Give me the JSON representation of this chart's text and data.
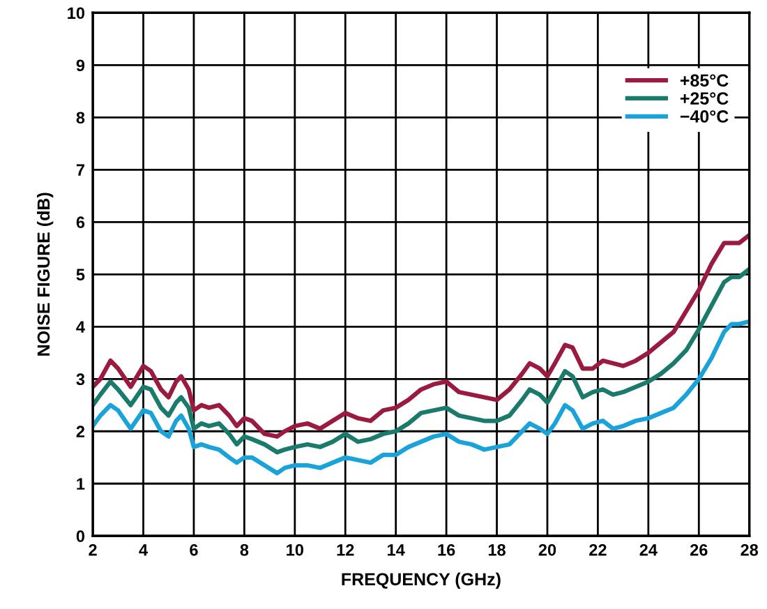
{
  "chart_data": {
    "type": "line",
    "xlabel": "FREQUENCY (GHz)",
    "ylabel": "NOISE FIGURE (dB)",
    "x": [
      2,
      2.3,
      2.7,
      3.0,
      3.5,
      4.0,
      4.3,
      4.7,
      5.0,
      5.3,
      5.5,
      5.8,
      6.0,
      6.3,
      6.6,
      7.0,
      7.4,
      7.7,
      8.0,
      8.3,
      8.8,
      9.3,
      9.6,
      10,
      10.5,
      11,
      11.5,
      12,
      12.5,
      13,
      13.5,
      14,
      14.5,
      15,
      15.5,
      16,
      16.5,
      17,
      17.5,
      18,
      18.5,
      19,
      19.3,
      19.7,
      20,
      20.3,
      20.7,
      21,
      21.4,
      21.8,
      22.2,
      22.6,
      23,
      23.5,
      24,
      24.5,
      25,
      25.5,
      26,
      26.5,
      27,
      27.3,
      27.6,
      28
    ],
    "series": [
      {
        "name": "+85°C",
        "color": "#9b1b40",
        "values": [
          2.85,
          3.0,
          3.35,
          3.2,
          2.85,
          3.25,
          3.15,
          2.8,
          2.65,
          2.95,
          3.05,
          2.8,
          2.4,
          2.5,
          2.45,
          2.5,
          2.3,
          2.1,
          2.25,
          2.2,
          1.95,
          1.9,
          2.0,
          2.1,
          2.15,
          2.05,
          2.2,
          2.35,
          2.25,
          2.2,
          2.4,
          2.45,
          2.6,
          2.8,
          2.9,
          2.95,
          2.75,
          2.7,
          2.65,
          2.6,
          2.8,
          3.1,
          3.3,
          3.2,
          3.05,
          3.3,
          3.65,
          3.6,
          3.2,
          3.2,
          3.35,
          3.3,
          3.25,
          3.35,
          3.5,
          3.7,
          3.9,
          4.3,
          4.7,
          5.2,
          5.6,
          5.6,
          5.6,
          5.75
        ]
      },
      {
        "name": "+25°C",
        "color": "#1a7a6b",
        "values": [
          2.5,
          2.7,
          2.95,
          2.8,
          2.5,
          2.85,
          2.8,
          2.45,
          2.3,
          2.55,
          2.65,
          2.45,
          2.05,
          2.15,
          2.1,
          2.15,
          1.95,
          1.75,
          1.9,
          1.85,
          1.75,
          1.6,
          1.65,
          1.7,
          1.75,
          1.7,
          1.8,
          1.95,
          1.8,
          1.85,
          1.95,
          2.0,
          2.15,
          2.35,
          2.4,
          2.45,
          2.3,
          2.25,
          2.2,
          2.2,
          2.3,
          2.6,
          2.8,
          2.7,
          2.55,
          2.8,
          3.15,
          3.05,
          2.65,
          2.75,
          2.8,
          2.7,
          2.75,
          2.85,
          2.95,
          3.1,
          3.3,
          3.55,
          3.95,
          4.4,
          4.85,
          4.95,
          4.95,
          5.1
        ]
      },
      {
        "name": "−40°C",
        "color": "#1aa3d9",
        "values": [
          2.1,
          2.3,
          2.5,
          2.4,
          2.05,
          2.4,
          2.35,
          2.0,
          1.9,
          2.2,
          2.3,
          2.05,
          1.7,
          1.75,
          1.7,
          1.65,
          1.5,
          1.4,
          1.5,
          1.5,
          1.35,
          1.2,
          1.3,
          1.35,
          1.35,
          1.3,
          1.4,
          1.5,
          1.45,
          1.4,
          1.55,
          1.55,
          1.7,
          1.8,
          1.9,
          1.95,
          1.8,
          1.75,
          1.65,
          1.7,
          1.75,
          2.0,
          2.15,
          2.05,
          1.95,
          2.15,
          2.5,
          2.4,
          2.05,
          2.15,
          2.2,
          2.05,
          2.1,
          2.2,
          2.25,
          2.35,
          2.45,
          2.7,
          3.0,
          3.4,
          3.9,
          4.05,
          4.05,
          4.1
        ]
      }
    ],
    "xlim": [
      2,
      28
    ],
    "xticks": [
      2,
      4,
      6,
      8,
      10,
      12,
      14,
      16,
      18,
      20,
      22,
      24,
      26,
      28
    ],
    "ylim": [
      0,
      10
    ],
    "yticks": [
      0,
      1,
      2,
      3,
      4,
      5,
      6,
      7,
      8,
      9,
      10
    ],
    "grid": true,
    "legend": "top right",
    "marker": "none",
    "line_style": "solid"
  }
}
